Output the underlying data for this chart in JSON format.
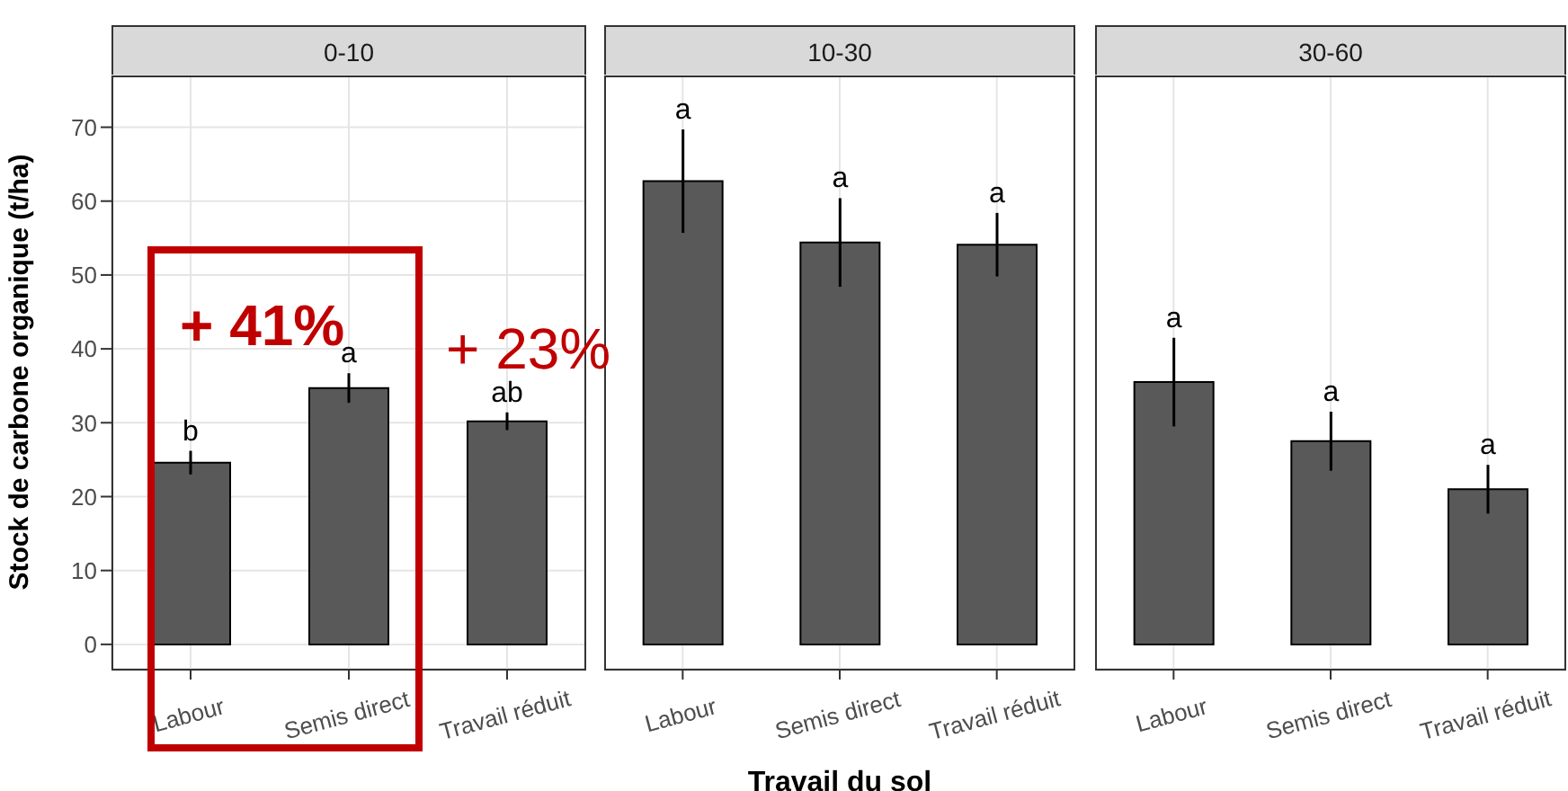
{
  "chart_data": [
    {
      "type": "bar",
      "title": "0-10",
      "ylabel": "Stock de carbone organique (t/ha)",
      "categories": [
        "Labour",
        "Semis direct",
        "Travail réduit"
      ],
      "values": [
        24.6,
        34.7,
        30.2
      ],
      "errors": [
        1.6,
        2.0,
        1.2
      ],
      "value_labels": [
        "b",
        "a",
        "ab"
      ],
      "color": "#595959",
      "ylim": [
        -3.3,
        77
      ],
      "yticks": [
        0,
        10,
        20,
        30,
        40,
        50,
        60,
        70
      ],
      "grid": true,
      "annotations": [
        "+ 41%",
        "+ 23%"
      ]
    },
    {
      "type": "bar",
      "title": "10-30",
      "xlabel": "Travail du sol",
      "categories": [
        "Labour",
        "Semis direct",
        "Travail réduit"
      ],
      "values": [
        62.7,
        54.4,
        54.1
      ],
      "errors": [
        7.0,
        6.0,
        4.3
      ],
      "value_labels": [
        "a",
        "a",
        "a"
      ],
      "color": "#595959",
      "ylim": [
        -3.3,
        77
      ],
      "yticks": [
        0,
        10,
        20,
        30,
        40,
        50,
        60,
        70
      ],
      "grid": true,
      "tick_labels": "x"
    },
    {
      "type": "bar",
      "title": "30-60",
      "categories": [
        "Labour",
        "Semis direct",
        "Travail réduit"
      ],
      "values": [
        35.5,
        27.5,
        21.0
      ],
      "errors": [
        6.0,
        4.0,
        3.3
      ],
      "value_labels": [
        "a",
        "a",
        "a"
      ],
      "color": "#595959",
      "ylim": [
        -3.3,
        77
      ],
      "yticks": [
        0,
        10,
        20,
        30,
        40,
        50,
        60,
        70
      ],
      "grid": true,
      "tick_labels": "x"
    }
  ]
}
